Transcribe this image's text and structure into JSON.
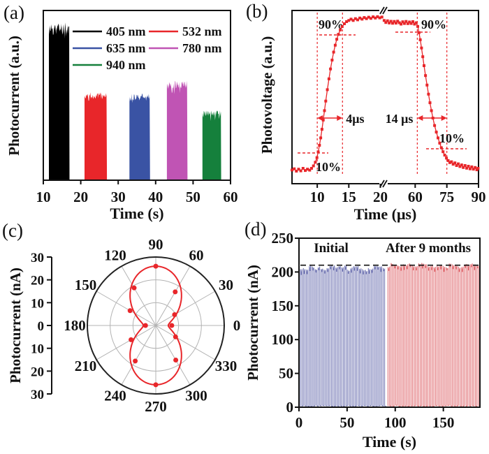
{
  "figure": {
    "background": "#ffffff",
    "accent_red": "#e8262a",
    "panel_labels": {
      "a": "(a)",
      "b": "(b)",
      "c": "(c)",
      "d": "(d)"
    }
  },
  "chart_data": [
    {
      "panel": "(a)",
      "type": "area",
      "xlabel": "Time (s)",
      "ylabel": "Photocurrent (a.u.)",
      "xlim": [
        10,
        60
      ],
      "x_ticks": [
        10,
        20,
        30,
        40,
        50,
        60
      ],
      "legend": {
        "position": "top-inside",
        "columns": 2
      },
      "series": [
        {
          "name": "405 nm",
          "color": "#000000",
          "on": 11.5,
          "off": 17.0,
          "amplitude": 0.95
        },
        {
          "name": "532 nm",
          "color": "#e8262a",
          "on": 21.0,
          "off": 27.0,
          "amplitude": 0.53
        },
        {
          "name": "635 nm",
          "color": "#3a53a4",
          "on": 33.0,
          "off": 38.5,
          "amplitude": 0.52
        },
        {
          "name": "780 nm",
          "color": "#c054b4",
          "on": 43.0,
          "off": 48.5,
          "amplitude": 0.6
        },
        {
          "name": "940 nm",
          "color": "#15803c",
          "on": 52.5,
          "off": 57.5,
          "amplitude": 0.42
        }
      ]
    },
    {
      "panel": "(b)",
      "type": "line",
      "marker": "square",
      "color": "#e8262a",
      "xlabel": "Time (μs)",
      "ylabel": "Photovoltage (a.u.)",
      "axis_break": {
        "left_xlim": [
          6,
          20.5
        ],
        "right_xlim": [
          45,
          90
        ]
      },
      "x_ticks_left": [
        10,
        15,
        20
      ],
      "x_ticks_right": [
        60,
        75,
        90
      ],
      "annotations": {
        "rise_time": "4μs",
        "fall_time": "14 μs",
        "level_high": "90%",
        "level_low": "10%",
        "rise_window_us": [
          10,
          14
        ],
        "fall_window_us": [
          61,
          75
        ]
      },
      "points_left": [
        [
          6.0,
          0.045
        ],
        [
          6.35,
          0.052
        ],
        [
          6.7,
          0.038
        ],
        [
          7.05,
          0.05
        ],
        [
          7.4,
          0.04
        ],
        [
          7.75,
          0.055
        ],
        [
          8.1,
          0.042
        ],
        [
          8.45,
          0.05
        ],
        [
          8.8,
          0.044
        ],
        [
          9.1,
          0.055
        ],
        [
          9.4,
          0.07
        ],
        [
          9.7,
          0.092
        ],
        [
          9.95,
          0.12
        ],
        [
          10.15,
          0.155
        ],
        [
          10.35,
          0.195
        ],
        [
          10.55,
          0.24
        ],
        [
          10.75,
          0.292
        ],
        [
          10.95,
          0.348
        ],
        [
          11.15,
          0.405
        ],
        [
          11.35,
          0.463
        ],
        [
          11.6,
          0.532
        ],
        [
          11.85,
          0.598
        ],
        [
          12.1,
          0.658
        ],
        [
          12.35,
          0.712
        ],
        [
          12.6,
          0.76
        ],
        [
          12.85,
          0.802
        ],
        [
          13.1,
          0.838
        ],
        [
          13.35,
          0.868
        ],
        [
          13.65,
          0.895
        ],
        [
          13.95,
          0.915
        ],
        [
          14.3,
          0.932
        ],
        [
          14.65,
          0.945
        ],
        [
          15.0,
          0.952
        ],
        [
          15.35,
          0.96
        ],
        [
          15.7,
          0.952
        ],
        [
          16.05,
          0.963
        ],
        [
          16.4,
          0.956
        ],
        [
          16.75,
          0.967
        ],
        [
          17.1,
          0.96
        ],
        [
          17.45,
          0.97
        ],
        [
          17.8,
          0.963
        ],
        [
          18.15,
          0.972
        ],
        [
          18.5,
          0.965
        ],
        [
          18.85,
          0.974
        ],
        [
          19.2,
          0.967
        ],
        [
          19.55,
          0.975
        ],
        [
          19.9,
          0.968
        ],
        [
          20.25,
          0.973
        ]
      ],
      "points_right": [
        [
          45.3,
          0.952
        ],
        [
          46.1,
          0.94
        ],
        [
          46.9,
          0.95
        ],
        [
          47.7,
          0.937
        ],
        [
          48.5,
          0.947
        ],
        [
          49.3,
          0.935
        ],
        [
          50.1,
          0.946
        ],
        [
          50.9,
          0.936
        ],
        [
          51.7,
          0.948
        ],
        [
          52.5,
          0.938
        ],
        [
          53.3,
          0.93
        ],
        [
          54.1,
          0.944
        ],
        [
          54.9,
          0.934
        ],
        [
          55.7,
          0.946
        ],
        [
          56.5,
          0.933
        ],
        [
          57.3,
          0.943
        ],
        [
          58.1,
          0.934
        ],
        [
          58.9,
          0.945
        ],
        [
          59.7,
          0.93
        ],
        [
          60.5,
          0.938
        ],
        [
          61.2,
          0.916
        ],
        [
          61.8,
          0.878
        ],
        [
          62.4,
          0.835
        ],
        [
          63.0,
          0.785
        ],
        [
          63.6,
          0.732
        ],
        [
          64.2,
          0.678
        ],
        [
          64.9,
          0.618
        ],
        [
          65.6,
          0.56
        ],
        [
          66.3,
          0.505
        ],
        [
          67.0,
          0.453
        ],
        [
          67.7,
          0.405
        ],
        [
          68.4,
          0.36
        ],
        [
          69.2,
          0.315
        ],
        [
          70.0,
          0.275
        ],
        [
          70.8,
          0.24
        ],
        [
          71.6,
          0.208
        ],
        [
          72.4,
          0.18
        ],
        [
          73.2,
          0.156
        ],
        [
          74.0,
          0.135
        ],
        [
          74.8,
          0.117
        ],
        [
          75.6,
          0.102
        ],
        [
          76.4,
          0.09
        ],
        [
          77.2,
          0.095
        ],
        [
          78.0,
          0.08
        ],
        [
          78.8,
          0.088
        ],
        [
          79.6,
          0.072
        ],
        [
          80.4,
          0.082
        ],
        [
          81.2,
          0.066
        ],
        [
          82.0,
          0.076
        ],
        [
          82.8,
          0.06
        ],
        [
          83.6,
          0.072
        ],
        [
          84.4,
          0.056
        ],
        [
          85.2,
          0.068
        ],
        [
          86.0,
          0.052
        ],
        [
          86.8,
          0.064
        ],
        [
          87.6,
          0.05
        ],
        [
          88.4,
          0.06
        ],
        [
          89.2,
          0.046
        ],
        [
          89.8,
          0.055
        ]
      ]
    },
    {
      "panel": "(c)",
      "type": "polar",
      "color": "#e8262a",
      "radial_label": "Photocurrent (nA)",
      "radial_scale_ticks": [
        30,
        20,
        10,
        0,
        10,
        20,
        30
      ],
      "r_max": 30,
      "rings": [
        10,
        20,
        30
      ],
      "angle_labels_deg": [
        0,
        30,
        60,
        90,
        120,
        150,
        180,
        210,
        240,
        270,
        300,
        330
      ],
      "fit_curve": {
        "form": "r = base + amp·sin²θ",
        "base_nA": 5.5,
        "amplitude_nA": 20.5
      },
      "points": [
        {
          "angle": 0,
          "r": 7.0
        },
        {
          "angle": 30,
          "r": 9.5
        },
        {
          "angle": 60,
          "r": 17.0
        },
        {
          "angle": 90,
          "r": 26.0
        },
        {
          "angle": 120,
          "r": 19.0
        },
        {
          "angle": 150,
          "r": 13.0
        },
        {
          "angle": 180,
          "r": 4.5
        },
        {
          "angle": 210,
          "r": 12.5
        },
        {
          "angle": 240,
          "r": 18.0
        },
        {
          "angle": 270,
          "r": 26.0
        },
        {
          "angle": 300,
          "r": 17.5
        },
        {
          "angle": 330,
          "r": 10.0
        }
      ]
    },
    {
      "panel": "(d)",
      "type": "line",
      "xlabel": "Time (s)",
      "ylabel": "Photocurrent (nA)",
      "xlim": [
        0,
        188
      ],
      "ylim": [
        0,
        250
      ],
      "x_ticks": [
        0,
        50,
        100,
        150
      ],
      "y_ticks": [
        0,
        50,
        100,
        150,
        200,
        250
      ],
      "reference_line_nA": 210,
      "segments": [
        {
          "label": "Initial",
          "color": "#7b7fb8",
          "t_start": 1.5,
          "t_end": 90.5,
          "cycles": 29,
          "peak_nA": 206
        },
        {
          "label": "After 9 months",
          "color": "#e2757a",
          "t_start": 92.5,
          "t_end": 188,
          "cycles": 30,
          "peak_nA": 210
        }
      ]
    }
  ]
}
